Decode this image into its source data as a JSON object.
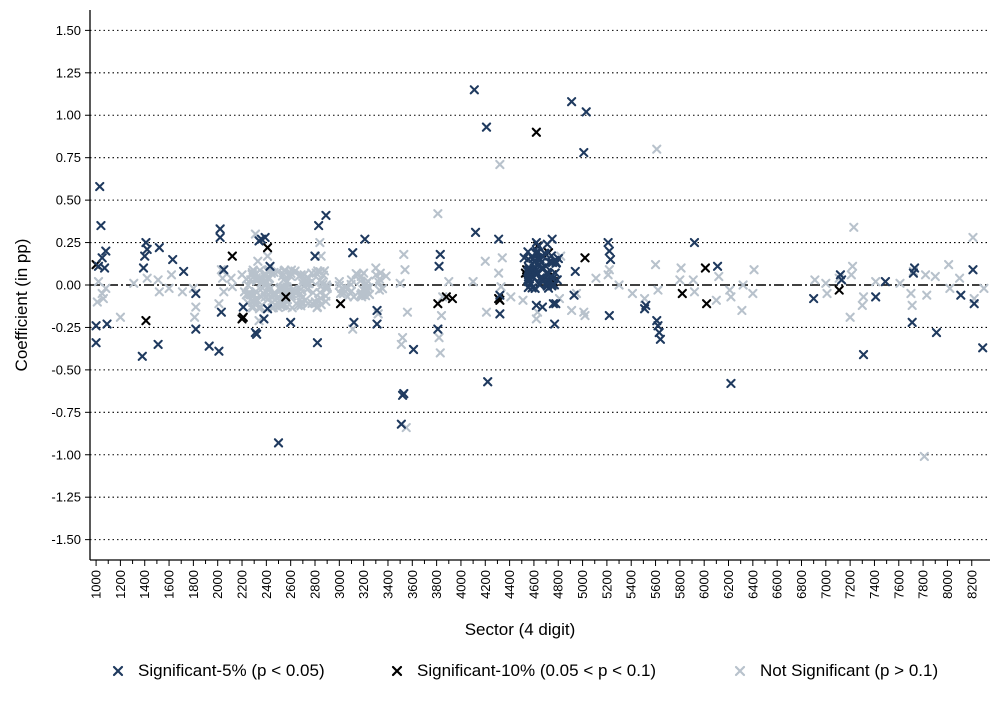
{
  "chart_data": {
    "type": "scatter",
    "xlabel": "Sector (4 digit)",
    "ylabel": "Coefficient (in pp)",
    "xlim": [
      950,
      8350
    ],
    "ylim": [
      -1.62,
      1.62
    ],
    "x_ticks": [
      1000,
      1200,
      1400,
      1600,
      1800,
      2000,
      2200,
      2400,
      2600,
      2800,
      3000,
      3200,
      3400,
      3600,
      3800,
      4000,
      4200,
      4400,
      4600,
      4800,
      5000,
      5200,
      5400,
      5600,
      5800,
      6000,
      6200,
      6400,
      6600,
      6800,
      7000,
      7200,
      7400,
      7600,
      7800,
      8000,
      8200
    ],
    "y_ticks": [
      1.5,
      1.25,
      1.0,
      0.75,
      0.5,
      0.25,
      0.0,
      -0.25,
      -0.5,
      -0.75,
      -1.0,
      -1.25,
      -1.5
    ],
    "y_tick_labels": [
      "1.50",
      "1.25",
      "1.00",
      "0.75",
      "0.50",
      "0.25",
      "0.00",
      "-0.25",
      "-0.50",
      "-0.75",
      "-1.00",
      "-1.25",
      "-1.50"
    ],
    "grid": "horizontal dotted",
    "zero_line": "dash-dot",
    "legend_position": "bottom",
    "marker": "×",
    "series": [
      {
        "name": "Significant-5% (p < 0.05)",
        "color": "#1f3a5f",
        "points": [
          [
            1000,
            -0.34
          ],
          [
            1000,
            -0.24
          ],
          [
            1020,
            0.11
          ],
          [
            1030,
            0.58
          ],
          [
            1040,
            0.35
          ],
          [
            1050,
            0.16
          ],
          [
            1070,
            0.1
          ],
          [
            1080,
            0.2
          ],
          [
            1090,
            -0.23
          ],
          [
            1380,
            -0.42
          ],
          [
            1390,
            0.1
          ],
          [
            1400,
            0.17
          ],
          [
            1410,
            0.25
          ],
          [
            1420,
            0.21
          ],
          [
            1510,
            -0.35
          ],
          [
            1520,
            0.22
          ],
          [
            1630,
            0.15
          ],
          [
            1720,
            0.08
          ],
          [
            1820,
            -0.26
          ],
          [
            1820,
            -0.05
          ],
          [
            1930,
            -0.36
          ],
          [
            2010,
            -0.39
          ],
          [
            2020,
            0.33
          ],
          [
            2020,
            0.28
          ],
          [
            2030,
            -0.16
          ],
          [
            2050,
            0.09
          ],
          [
            2210,
            -0.13
          ],
          [
            2310,
            -0.28
          ],
          [
            2320,
            -0.29
          ],
          [
            2340,
            0.26
          ],
          [
            2360,
            0.27
          ],
          [
            2380,
            -0.2
          ],
          [
            2390,
            0.28
          ],
          [
            2410,
            -0.14
          ],
          [
            2430,
            0.11
          ],
          [
            2500,
            -0.93
          ],
          [
            2600,
            -0.22
          ],
          [
            2800,
            0.17
          ],
          [
            2820,
            -0.34
          ],
          [
            2830,
            0.35
          ],
          [
            2890,
            0.41
          ],
          [
            3110,
            0.19
          ],
          [
            3120,
            -0.22
          ],
          [
            3210,
            0.27
          ],
          [
            3310,
            -0.23
          ],
          [
            3310,
            -0.15
          ],
          [
            3510,
            -0.82
          ],
          [
            3520,
            -0.65
          ],
          [
            3530,
            -0.64
          ],
          [
            3610,
            -0.38
          ],
          [
            3810,
            -0.26
          ],
          [
            3820,
            0.11
          ],
          [
            3830,
            0.18
          ],
          [
            4110,
            1.15
          ],
          [
            4120,
            0.31
          ],
          [
            4210,
            0.93
          ],
          [
            4220,
            -0.57
          ],
          [
            4310,
            0.27
          ],
          [
            4320,
            -0.17
          ],
          [
            4320,
            -0.06
          ],
          [
            4520,
            0.16
          ],
          [
            4610,
            -0.02
          ],
          [
            4620,
            -0.12
          ],
          [
            4620,
            0.25
          ],
          [
            4640,
            0.23
          ],
          [
            4670,
            -0.13
          ],
          [
            4710,
            0.24
          ],
          [
            4750,
            0.27
          ],
          [
            4760,
            -0.11
          ],
          [
            4770,
            -0.23
          ],
          [
            4780,
            -0.11
          ],
          [
            4910,
            1.08
          ],
          [
            4930,
            -0.06
          ],
          [
            4940,
            0.08
          ],
          [
            5010,
            0.78
          ],
          [
            5030,
            1.02
          ],
          [
            5210,
            0.25
          ],
          [
            5220,
            0.2
          ],
          [
            5230,
            0.15
          ],
          [
            5220,
            -0.18
          ],
          [
            5510,
            -0.14
          ],
          [
            5520,
            -0.12
          ],
          [
            5610,
            -0.21
          ],
          [
            5620,
            -0.24
          ],
          [
            5630,
            -0.28
          ],
          [
            5640,
            -0.32
          ],
          [
            5920,
            0.25
          ],
          [
            6110,
            0.11
          ],
          [
            6220,
            -0.58
          ],
          [
            6900,
            -0.08
          ],
          [
            7120,
            0.06
          ],
          [
            7130,
            0.03
          ],
          [
            7310,
            -0.41
          ],
          [
            7410,
            -0.07
          ],
          [
            7490,
            0.02
          ],
          [
            7710,
            -0.22
          ],
          [
            7720,
            0.07
          ],
          [
            7730,
            0.1
          ],
          [
            7910,
            -0.28
          ],
          [
            8110,
            -0.06
          ],
          [
            8210,
            0.09
          ],
          [
            8220,
            -0.11
          ],
          [
            8290,
            -0.37
          ]
        ],
        "clusters": [
          [
            4550,
            4810,
            -0.02,
            0.2,
            70
          ]
        ]
      },
      {
        "name": "Significant-10% (0.05 < p < 0.1)",
        "color": "#000000",
        "points": [
          [
            1000,
            0.12
          ],
          [
            1410,
            -0.21
          ],
          [
            2120,
            0.17
          ],
          [
            2200,
            -0.2
          ],
          [
            2210,
            -0.19
          ],
          [
            2410,
            0.22
          ],
          [
            2560,
            -0.07
          ],
          [
            3010,
            -0.11
          ],
          [
            3810,
            -0.11
          ],
          [
            3880,
            -0.07
          ],
          [
            3930,
            -0.08
          ],
          [
            4310,
            -0.08
          ],
          [
            4320,
            -0.09
          ],
          [
            4530,
            0.07
          ],
          [
            4540,
            0.09
          ],
          [
            4550,
            0.03
          ],
          [
            4620,
            0.9
          ],
          [
            4630,
            0.23
          ],
          [
            4720,
            0.19
          ],
          [
            4750,
            0.06
          ],
          [
            4760,
            0.02
          ],
          [
            5020,
            0.16
          ],
          [
            5820,
            -0.05
          ],
          [
            6010,
            0.1
          ],
          [
            6020,
            -0.11
          ],
          [
            7110,
            -0.03
          ]
        ],
        "clusters": []
      },
      {
        "name": "Not Significant (p > 0.1)",
        "color": "#b8c2cc",
        "points": [
          [
            1010,
            -0.1
          ],
          [
            1020,
            0.02
          ],
          [
            1050,
            -0.05
          ],
          [
            1060,
            -0.08
          ],
          [
            1080,
            -0.02
          ],
          [
            1200,
            -0.19
          ],
          [
            1310,
            0.01
          ],
          [
            1420,
            0.04
          ],
          [
            1510,
            0.03
          ],
          [
            1520,
            -0.04
          ],
          [
            1600,
            -0.02
          ],
          [
            1620,
            0.06
          ],
          [
            1710,
            -0.04
          ],
          [
            1800,
            -0.02
          ],
          [
            1810,
            -0.19
          ],
          [
            1820,
            -0.13
          ],
          [
            2010,
            -0.11
          ],
          [
            2030,
            0.09
          ],
          [
            2040,
            0.04
          ],
          [
            2050,
            -0.04
          ],
          [
            2110,
            0.04
          ],
          [
            2120,
            -0.01
          ],
          [
            2200,
            0.06
          ],
          [
            2220,
            -0.04
          ],
          [
            2300,
            -0.06
          ],
          [
            2310,
            0.3
          ],
          [
            2330,
            0.14
          ],
          [
            2340,
            -0.21
          ],
          [
            2350,
            0.04
          ],
          [
            2410,
            0.17
          ],
          [
            2420,
            0.09
          ],
          [
            2520,
            -0.1
          ],
          [
            2610,
            -0.05
          ],
          [
            2710,
            0.06
          ],
          [
            2720,
            -0.09
          ],
          [
            2810,
            0.07
          ],
          [
            2820,
            -0.13
          ],
          [
            2830,
            -0.09
          ],
          [
            2840,
            0.25
          ],
          [
            2850,
            0.17
          ],
          [
            2900,
            -0.02
          ],
          [
            3000,
            0.02
          ],
          [
            3010,
            -0.05
          ],
          [
            3100,
            0.03
          ],
          [
            3110,
            -0.26
          ],
          [
            3120,
            -0.07
          ],
          [
            3200,
            0.07
          ],
          [
            3220,
            -0.02
          ],
          [
            3300,
            0.1
          ],
          [
            3320,
            -0.17
          ],
          [
            3330,
            -0.03
          ],
          [
            3500,
            0.01
          ],
          [
            3510,
            -0.35
          ],
          [
            3520,
            -0.31
          ],
          [
            3530,
            0.18
          ],
          [
            3540,
            0.09
          ],
          [
            3550,
            -0.84
          ],
          [
            3560,
            -0.16
          ],
          [
            3810,
            0.42
          ],
          [
            3820,
            -0.31
          ],
          [
            3830,
            -0.4
          ],
          [
            3840,
            -0.18
          ],
          [
            3850,
            -0.07
          ],
          [
            3900,
            0.02
          ],
          [
            4100,
            0.02
          ],
          [
            4200,
            0.14
          ],
          [
            4210,
            -0.16
          ],
          [
            4310,
            0.07
          ],
          [
            4320,
            0.71
          ],
          [
            4330,
            -0.01
          ],
          [
            4340,
            0.16
          ],
          [
            4410,
            -0.07
          ],
          [
            4510,
            -0.09
          ],
          [
            4620,
            -0.2
          ],
          [
            4630,
            -0.16
          ],
          [
            4810,
            -0.08
          ],
          [
            4820,
            0.17
          ],
          [
            4910,
            -0.15
          ],
          [
            4950,
            -0.05
          ],
          [
            5010,
            -0.16
          ],
          [
            5020,
            -0.18
          ],
          [
            5110,
            0.04
          ],
          [
            5210,
            0.06
          ],
          [
            5220,
            0.09
          ],
          [
            5300,
            0.0
          ],
          [
            5410,
            -0.05
          ],
          [
            5510,
            -0.08
          ],
          [
            5600,
            0.12
          ],
          [
            5610,
            0.8
          ],
          [
            5620,
            -0.03
          ],
          [
            5800,
            0.03
          ],
          [
            5810,
            0.1
          ],
          [
            5910,
            0.03
          ],
          [
            5920,
            -0.04
          ],
          [
            6100,
            -0.09
          ],
          [
            6120,
            0.05
          ],
          [
            6210,
            -0.03
          ],
          [
            6220,
            -0.07
          ],
          [
            6310,
            -0.15
          ],
          [
            6320,
            0.0
          ],
          [
            6400,
            -0.05
          ],
          [
            6410,
            0.09
          ],
          [
            6910,
            0.03
          ],
          [
            7000,
            0.01
          ],
          [
            7010,
            -0.05
          ],
          [
            7110,
            0.04
          ],
          [
            7200,
            -0.19
          ],
          [
            7210,
            0.06
          ],
          [
            7220,
            0.11
          ],
          [
            7230,
            0.34
          ],
          [
            7300,
            -0.12
          ],
          [
            7310,
            -0.07
          ],
          [
            7410,
            0.02
          ],
          [
            7610,
            0.01
          ],
          [
            7700,
            -0.05
          ],
          [
            7710,
            -0.12
          ],
          [
            7720,
            0.08
          ],
          [
            7810,
            -1.01
          ],
          [
            7820,
            0.06
          ],
          [
            7830,
            -0.06
          ],
          [
            7900,
            0.05
          ],
          [
            8010,
            0.12
          ],
          [
            8020,
            -0.02
          ],
          [
            8100,
            0.04
          ],
          [
            8210,
            0.28
          ],
          [
            8220,
            -0.08
          ],
          [
            8300,
            -0.02
          ]
        ],
        "clusters": [
          [
            2230,
            2920,
            -0.14,
            0.09,
            140
          ],
          [
            3000,
            3400,
            -0.07,
            0.07,
            30
          ]
        ]
      }
    ]
  }
}
